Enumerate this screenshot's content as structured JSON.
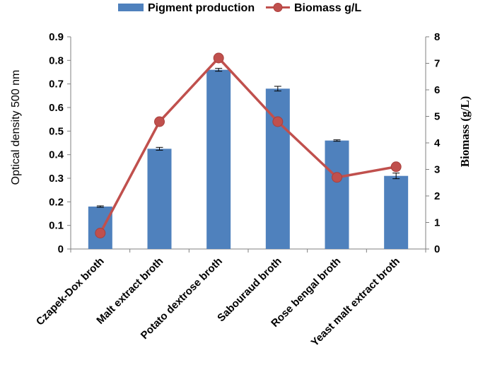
{
  "chart_data": {
    "type": "bar",
    "categories": [
      "Czapek-Dox broth",
      "Malt extract broth",
      "Potato dextrose broth",
      "Sabouraud broth",
      "Rose bengal broth",
      "Yeast malt extract broth"
    ],
    "series": [
      {
        "name": "Pigment production",
        "type": "bar",
        "axis": "left",
        "color": "#4F81BD",
        "values": [
          0.18,
          0.425,
          0.76,
          0.68,
          0.46,
          0.31
        ],
        "errors": [
          0.003,
          0.006,
          0.006,
          0.01,
          0.003,
          0.012
        ]
      },
      {
        "name": "Biomass g/L",
        "type": "line",
        "axis": "right",
        "color": "#C0504D",
        "values": [
          0.6,
          4.8,
          7.2,
          4.8,
          2.7,
          3.1
        ]
      }
    ],
    "ylabel": "Optical density 500 nm",
    "ylabel_right": "Biomass (g/L)",
    "ylim": [
      0,
      0.9
    ],
    "ylim_right": [
      0,
      8
    ],
    "yticks": [
      "0",
      "0.1",
      "0.2",
      "0.3",
      "0.4",
      "0.5",
      "0.6",
      "0.7",
      "0.8",
      "0.9"
    ],
    "yticks_right": [
      "0",
      "1",
      "2",
      "3",
      "4",
      "5",
      "6",
      "7",
      "8"
    ],
    "legend_position": "top",
    "grid": false
  }
}
